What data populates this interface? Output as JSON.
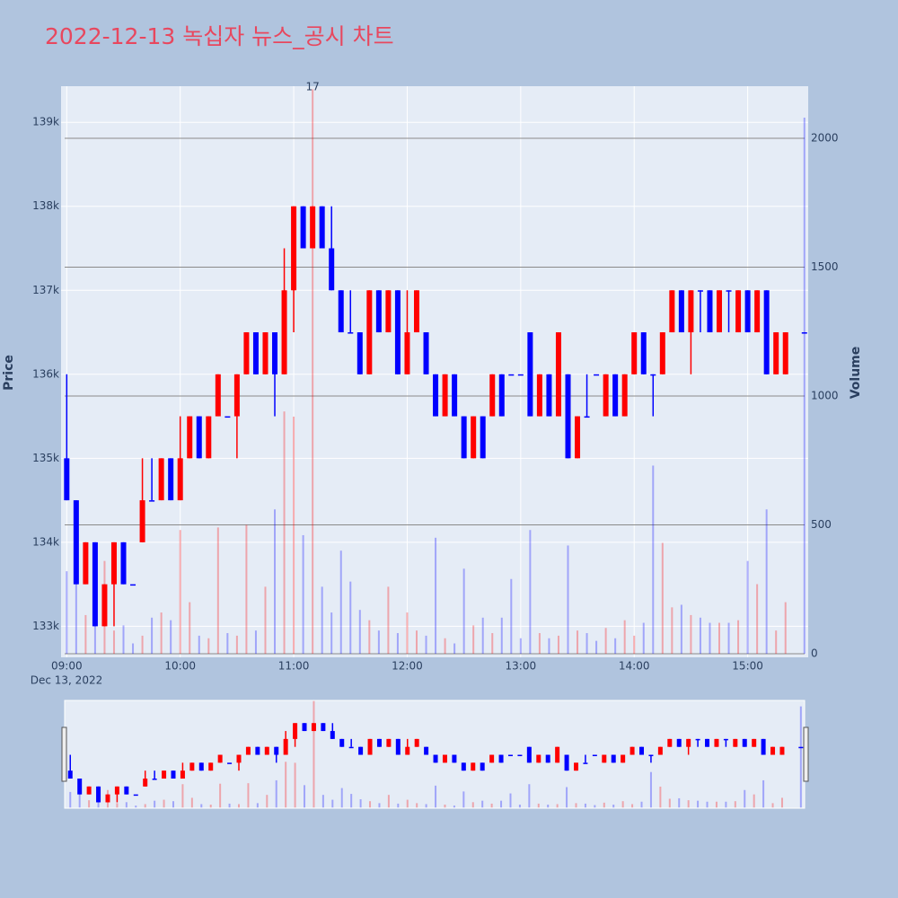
{
  "chart_data": {
    "type": "candlestick",
    "title": "2022-12-13 녹십자 뉴스_공시 차트",
    "y_label": "Price",
    "y2_label": "Volume",
    "x_date_label": "Dec 13, 2022",
    "increasing_color": "#ff0000",
    "decreasing_color": "#0000ff",
    "grid": true,
    "range_slider": true,
    "annotations": [
      {
        "text": "17",
        "x": "11:10"
      }
    ],
    "xlim": [
      "08:57",
      "15:32"
    ],
    "xticks": [
      "09:00",
      "10:00",
      "11:00",
      "12:00",
      "13:00",
      "14:00",
      "15:00"
    ],
    "ylim": [
      132630,
      139430
    ],
    "yticks": [
      {
        "value": 133000,
        "label": "133k"
      },
      {
        "value": 134000,
        "label": "134k"
      },
      {
        "value": 135000,
        "label": "135k"
      },
      {
        "value": 136000,
        "label": "136k"
      },
      {
        "value": 137000,
        "label": "137k"
      },
      {
        "value": 138000,
        "label": "138k"
      },
      {
        "value": 139000,
        "label": "139k"
      }
    ],
    "y2lim": [
      -14,
      2202
    ],
    "y2ticks": [
      0,
      500,
      1000,
      1500,
      2000
    ],
    "x": [
      "09:00",
      "09:05",
      "09:10",
      "09:15",
      "09:20",
      "09:25",
      "09:30",
      "09:35",
      "09:40",
      "09:45",
      "09:50",
      "09:55",
      "10:00",
      "10:05",
      "10:10",
      "10:15",
      "10:20",
      "10:25",
      "10:30",
      "10:35",
      "10:40",
      "10:45",
      "10:50",
      "10:55",
      "11:00",
      "11:05",
      "11:10",
      "11:15",
      "11:20",
      "11:25",
      "11:30",
      "11:35",
      "11:40",
      "11:45",
      "11:50",
      "11:55",
      "12:00",
      "12:05",
      "12:10",
      "12:15",
      "12:20",
      "12:25",
      "12:30",
      "12:35",
      "12:40",
      "12:45",
      "12:50",
      "12:55",
      "13:00",
      "13:05",
      "13:10",
      "13:15",
      "13:20",
      "13:25",
      "13:30",
      "13:35",
      "13:40",
      "13:45",
      "13:50",
      "13:55",
      "14:00",
      "14:05",
      "14:10",
      "14:15",
      "14:20",
      "14:25",
      "14:30",
      "14:35",
      "14:40",
      "14:45",
      "14:50",
      "14:55",
      "15:00",
      "15:05",
      "15:10",
      "15:15",
      "15:20",
      "15:30"
    ],
    "open": [
      135000,
      134500,
      133500,
      134000,
      133000,
      133500,
      134000,
      133500,
      134000,
      134500,
      134500,
      135000,
      134500,
      135000,
      135500,
      135000,
      135500,
      135500,
      135500,
      136000,
      136500,
      136000,
      136500,
      136000,
      137000,
      138000,
      137500,
      138000,
      137500,
      137000,
      136500,
      136500,
      136000,
      137000,
      136500,
      137000,
      136000,
      136500,
      136500,
      136000,
      135500,
      136000,
      135500,
      135000,
      135500,
      135500,
      136000,
      136000,
      136000,
      136500,
      135500,
      136000,
      135500,
      136000,
      135000,
      135500,
      136000,
      135500,
      136000,
      135500,
      136000,
      136500,
      136000,
      136000,
      136500,
      137000,
      136500,
      137000,
      137000,
      136500,
      137000,
      136500,
      137000,
      136500,
      137000,
      136000,
      136000,
      136500
    ],
    "high": [
      136000,
      134500,
      134000,
      134000,
      133500,
      134000,
      134000,
      133500,
      135000,
      135000,
      135000,
      135000,
      135500,
      135500,
      135500,
      135500,
      136000,
      135500,
      136000,
      136500,
      136500,
      136500,
      136500,
      137500,
      138000,
      138000,
      138000,
      138000,
      138000,
      137000,
      137000,
      136500,
      137000,
      137000,
      137000,
      137000,
      137000,
      137000,
      136500,
      136000,
      136000,
      136000,
      135500,
      135500,
      135500,
      136000,
      136000,
      136000,
      136000,
      136500,
      136000,
      136000,
      136500,
      136000,
      135500,
      136000,
      136000,
      136000,
      136000,
      136000,
      136500,
      136500,
      136000,
      136500,
      137000,
      137000,
      137000,
      137000,
      137000,
      137000,
      137000,
      137000,
      137000,
      137000,
      137000,
      136500,
      136500,
      136500
    ],
    "low": [
      134500,
      133500,
      133500,
      133000,
      133000,
      133000,
      133500,
      133500,
      134000,
      134500,
      134500,
      134500,
      134500,
      135000,
      135000,
      135000,
      135500,
      135500,
      135000,
      136000,
      136000,
      136000,
      135500,
      136000,
      136500,
      137500,
      137500,
      137500,
      137000,
      136500,
      136500,
      136000,
      136000,
      136500,
      136500,
      136000,
      136000,
      136500,
      136000,
      135500,
      135500,
      135500,
      135000,
      135000,
      135000,
      135500,
      135500,
      136000,
      136000,
      135500,
      135500,
      135500,
      135500,
      135000,
      135000,
      135500,
      136000,
      135500,
      135500,
      135500,
      136000,
      136000,
      135500,
      136000,
      136500,
      136500,
      136000,
      136500,
      136500,
      136500,
      136500,
      136500,
      136500,
      136500,
      136000,
      136000,
      136000,
      136500
    ],
    "close": [
      134500,
      133500,
      134000,
      133000,
      133500,
      134000,
      133500,
      133500,
      134500,
      134500,
      135000,
      134500,
      135000,
      135500,
      135000,
      135500,
      136000,
      135500,
      136000,
      136500,
      136000,
      136500,
      136000,
      137000,
      138000,
      137500,
      138000,
      137500,
      137000,
      136500,
      136500,
      136000,
      137000,
      136500,
      137000,
      136000,
      136500,
      137000,
      136000,
      135500,
      136000,
      135500,
      135000,
      135500,
      135000,
      136000,
      135500,
      136000,
      136000,
      135500,
      136000,
      135500,
      136500,
      135000,
      135500,
      135500,
      136000,
      136000,
      135500,
      136000,
      136500,
      136000,
      136000,
      136500,
      137000,
      136500,
      137000,
      137000,
      136500,
      137000,
      137000,
      137000,
      136500,
      137000,
      136000,
      136500,
      136500,
      136500
    ],
    "volume": [
      320,
      270,
      150,
      120,
      360,
      90,
      110,
      40,
      70,
      140,
      160,
      130,
      480,
      200,
      70,
      60,
      490,
      80,
      70,
      500,
      90,
      260,
      560,
      940,
      920,
      460,
      2190,
      260,
      160,
      400,
      280,
      170,
      130,
      90,
      260,
      80,
      160,
      90,
      70,
      450,
      60,
      40,
      330,
      110,
      140,
      80,
      140,
      290,
      60,
      480,
      80,
      60,
      70,
      420,
      90,
      80,
      50,
      100,
      60,
      130,
      70,
      120,
      730,
      430,
      180,
      190,
      150,
      140,
      120,
      120,
      120,
      130,
      360,
      270,
      560,
      90,
      200,
      2080
    ]
  }
}
